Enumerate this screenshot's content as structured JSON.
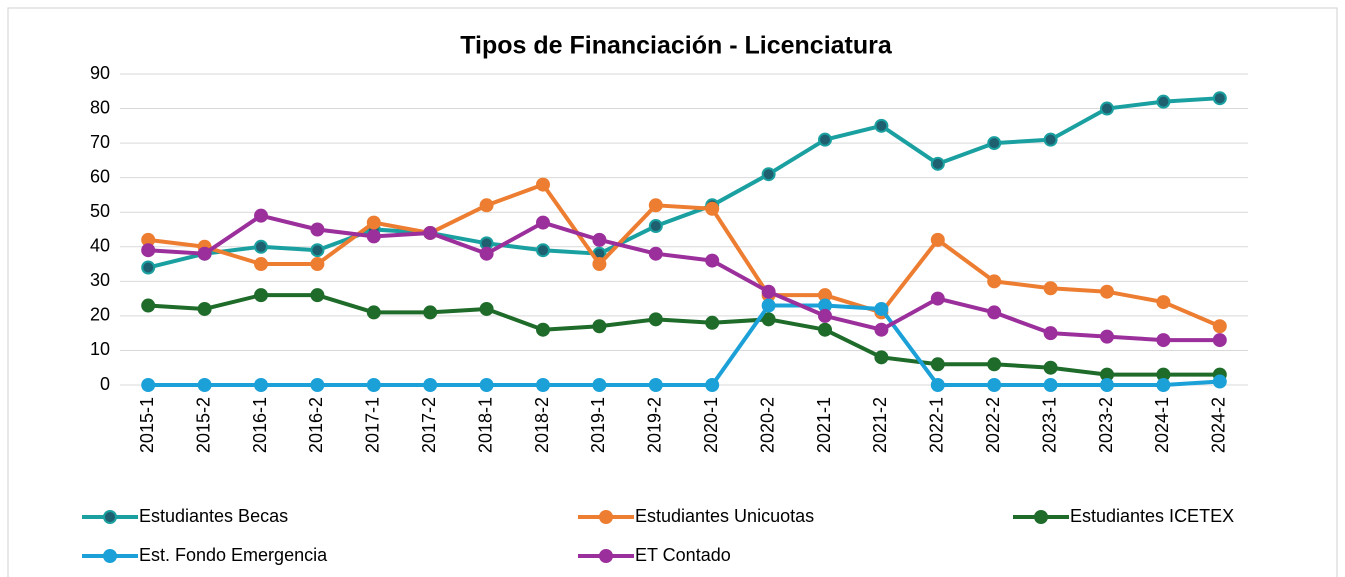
{
  "chart_data": {
    "type": "line",
    "title": "Tipos de Financiación - Licenciatura",
    "categories": [
      "2015-1",
      "2015-2",
      "2016-1",
      "2016-2",
      "2017-1",
      "2017-2",
      "2018-1",
      "2018-2",
      "2019-1",
      "2019-2",
      "2020-1",
      "2020-2",
      "2021-1",
      "2021-2",
      "2022-1",
      "2022-2",
      "2023-1",
      "2023-2",
      "2024-1",
      "2024-2"
    ],
    "series": [
      {
        "name": "Estudiantes Becas",
        "color": "#1aa0a0",
        "values": [
          34,
          38,
          40,
          39,
          45,
          44,
          41,
          39,
          38,
          46,
          52,
          61,
          71,
          75,
          64,
          70,
          71,
          80,
          82,
          83
        ]
      },
      {
        "name": "Estudiantes Unicuotas",
        "color": "#ed7d31",
        "values": [
          42,
          40,
          35,
          35,
          47,
          44,
          52,
          58,
          35,
          52,
          51,
          26,
          26,
          21,
          42,
          30,
          28,
          27,
          24,
          17
        ]
      },
      {
        "name": "Estudiantes ICETEX",
        "color": "#1e6b2a",
        "values": [
          23,
          22,
          26,
          26,
          21,
          21,
          22,
          16,
          17,
          19,
          18,
          19,
          16,
          8,
          6,
          6,
          5,
          3,
          3,
          3
        ]
      },
      {
        "name": "Est. Fondo Emergencia",
        "color": "#1ba1d8",
        "values": [
          0,
          0,
          0,
          0,
          0,
          0,
          0,
          0,
          0,
          0,
          0,
          23,
          23,
          22,
          0,
          0,
          0,
          0,
          0,
          1
        ]
      },
      {
        "name": "ET Contado",
        "color": "#9b2f9b",
        "values": [
          39,
          38,
          49,
          45,
          43,
          44,
          38,
          47,
          42,
          38,
          36,
          27,
          20,
          16,
          25,
          21,
          15,
          14,
          13,
          13
        ]
      }
    ],
    "ylim": [
      0,
      90
    ],
    "yticks": [
      0,
      10,
      20,
      30,
      40,
      50,
      60,
      70,
      80,
      90
    ],
    "grid": true,
    "legend": "bottom"
  }
}
